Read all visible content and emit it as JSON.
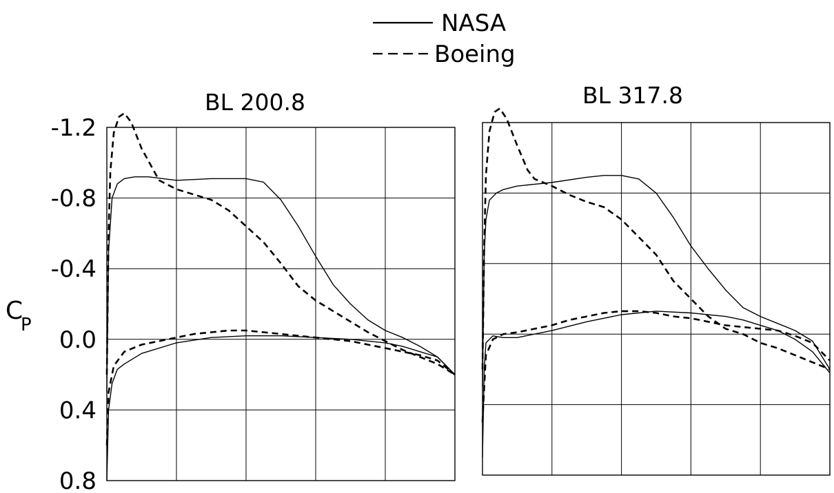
{
  "legend": {
    "entries": [
      {
        "label": "NASA",
        "style": "solid"
      },
      {
        "label": "Boeing",
        "style": "dashed"
      }
    ]
  },
  "ylabel": "C",
  "ylabel_sub": "P",
  "chart_data": [
    {
      "type": "line",
      "title": "BL 200.8",
      "xlabel": "",
      "ylabel": "CP",
      "ylim": [
        0.8,
        -1.2
      ],
      "y_ticks": [
        "-1.2",
        "-0.8",
        "-0.4",
        "0.0",
        "0.4",
        "0.8"
      ],
      "y_tick_values": [
        -1.2,
        -0.8,
        -0.4,
        0.0,
        0.4,
        0.8
      ],
      "xlim": [
        0,
        1
      ],
      "grid": true,
      "legend_position": "top",
      "series": [
        {
          "name": "NASA",
          "style": "solid",
          "surface": "upper",
          "x": [
            0.0,
            0.005,
            0.015,
            0.03,
            0.05,
            0.08,
            0.12,
            0.2,
            0.3,
            0.4,
            0.45,
            0.5,
            0.55,
            0.6,
            0.65,
            0.7,
            0.75,
            0.8,
            0.85,
            0.9,
            0.95,
            1.0
          ],
          "y": [
            0.3,
            -0.5,
            -0.8,
            -0.88,
            -0.91,
            -0.92,
            -0.92,
            -0.9,
            -0.91,
            -0.91,
            -0.89,
            -0.79,
            -0.64,
            -0.47,
            -0.31,
            -0.2,
            -0.11,
            -0.05,
            -0.01,
            0.04,
            0.1,
            0.2
          ]
        },
        {
          "name": "NASA",
          "style": "solid",
          "surface": "lower",
          "x": [
            0.0,
            0.005,
            0.015,
            0.03,
            0.05,
            0.1,
            0.2,
            0.3,
            0.4,
            0.5,
            0.6,
            0.7,
            0.8,
            0.85,
            0.9,
            0.95,
            1.0
          ],
          "y": [
            0.8,
            0.4,
            0.25,
            0.17,
            0.14,
            0.08,
            0.02,
            -0.01,
            -0.02,
            -0.02,
            -0.01,
            0.0,
            0.02,
            0.04,
            0.07,
            0.1,
            0.2
          ]
        },
        {
          "name": "Boeing",
          "style": "dashed",
          "surface": "upper",
          "x": [
            0.0,
            0.005,
            0.01,
            0.02,
            0.035,
            0.05,
            0.07,
            0.1,
            0.15,
            0.2,
            0.3,
            0.35,
            0.4,
            0.45,
            0.5,
            0.55,
            0.6,
            0.65,
            0.7,
            0.75,
            0.8,
            0.85,
            0.9,
            0.95,
            1.0
          ],
          "y": [
            0.2,
            -0.6,
            -0.95,
            -1.17,
            -1.26,
            -1.28,
            -1.23,
            -1.08,
            -0.9,
            -0.85,
            -0.79,
            -0.73,
            -0.64,
            -0.55,
            -0.43,
            -0.3,
            -0.22,
            -0.16,
            -0.1,
            -0.04,
            0.01,
            0.06,
            0.1,
            0.14,
            0.2
          ]
        },
        {
          "name": "Boeing",
          "style": "dashed",
          "surface": "lower",
          "x": [
            0.0,
            0.005,
            0.02,
            0.05,
            0.1,
            0.15,
            0.2,
            0.25,
            0.3,
            0.35,
            0.4,
            0.45,
            0.5,
            0.55,
            0.6,
            0.65,
            0.7,
            0.75,
            0.8,
            0.85,
            0.9,
            0.95,
            1.0
          ],
          "y": [
            0.6,
            0.3,
            0.15,
            0.07,
            0.03,
            0.01,
            -0.01,
            -0.03,
            -0.04,
            -0.05,
            -0.05,
            -0.04,
            -0.03,
            -0.02,
            -0.01,
            0.0,
            0.01,
            0.03,
            0.05,
            0.07,
            0.09,
            0.12,
            0.2
          ]
        }
      ]
    },
    {
      "type": "line",
      "title": "BL 317.8",
      "xlabel": "",
      "ylabel": "CP",
      "ylim": [
        0.8,
        -1.2
      ],
      "y_ticks": [],
      "y_tick_values": [
        -1.2,
        -0.8,
        -0.4,
        0.0,
        0.4,
        0.8
      ],
      "xlim": [
        0,
        1
      ],
      "grid": true,
      "series": [
        {
          "name": "NASA",
          "style": "solid",
          "surface": "upper",
          "x": [
            0.0,
            0.005,
            0.01,
            0.02,
            0.04,
            0.06,
            0.1,
            0.15,
            0.2,
            0.3,
            0.35,
            0.4,
            0.45,
            0.5,
            0.55,
            0.6,
            0.65,
            0.7,
            0.75,
            0.8,
            0.85,
            0.9,
            0.95,
            1.0
          ],
          "y": [
            0.3,
            -0.45,
            -0.65,
            -0.76,
            -0.8,
            -0.82,
            -0.84,
            -0.85,
            -0.86,
            -0.89,
            -0.9,
            -0.9,
            -0.88,
            -0.8,
            -0.66,
            -0.5,
            -0.37,
            -0.25,
            -0.15,
            -0.1,
            -0.06,
            -0.02,
            0.04,
            0.2
          ]
        },
        {
          "name": "NASA",
          "style": "solid",
          "surface": "lower",
          "x": [
            0.0,
            0.005,
            0.01,
            0.03,
            0.06,
            0.1,
            0.2,
            0.3,
            0.4,
            0.5,
            0.6,
            0.7,
            0.75,
            0.8,
            0.85,
            0.9,
            0.95,
            1.0
          ],
          "y": [
            0.7,
            0.2,
            0.05,
            0.01,
            0.02,
            0.02,
            -0.02,
            -0.07,
            -0.11,
            -0.13,
            -0.12,
            -0.1,
            -0.08,
            -0.05,
            -0.02,
            0.03,
            0.1,
            0.22
          ]
        },
        {
          "name": "Boeing",
          "style": "dashed",
          "surface": "upper",
          "x": [
            0.0,
            0.005,
            0.01,
            0.02,
            0.035,
            0.05,
            0.07,
            0.1,
            0.13,
            0.15,
            0.2,
            0.25,
            0.3,
            0.35,
            0.4,
            0.45,
            0.5,
            0.55,
            0.6,
            0.65,
            0.7,
            0.75,
            0.8,
            0.85,
            0.9,
            0.95,
            1.0
          ],
          "y": [
            0.2,
            -0.5,
            -0.9,
            -1.15,
            -1.26,
            -1.28,
            -1.22,
            -1.07,
            -0.93,
            -0.88,
            -0.84,
            -0.79,
            -0.75,
            -0.72,
            -0.65,
            -0.55,
            -0.45,
            -0.3,
            -0.2,
            -0.1,
            -0.03,
            0.0,
            0.05,
            0.08,
            0.12,
            0.16,
            0.2
          ]
        },
        {
          "name": "Boeing",
          "style": "dashed",
          "surface": "lower",
          "x": [
            0.0,
            0.005,
            0.01,
            0.03,
            0.06,
            0.1,
            0.15,
            0.2,
            0.25,
            0.3,
            0.35,
            0.4,
            0.45,
            0.5,
            0.55,
            0.6,
            0.65,
            0.7,
            0.75,
            0.8,
            0.85,
            0.9,
            0.95,
            1.0
          ],
          "y": [
            0.5,
            0.3,
            0.12,
            0.03,
            0.0,
            -0.01,
            -0.03,
            -0.05,
            -0.08,
            -0.1,
            -0.12,
            -0.13,
            -0.13,
            -0.12,
            -0.1,
            -0.09,
            -0.07,
            -0.05,
            -0.04,
            -0.03,
            -0.02,
            0.01,
            0.05,
            0.15
          ]
        }
      ]
    }
  ]
}
